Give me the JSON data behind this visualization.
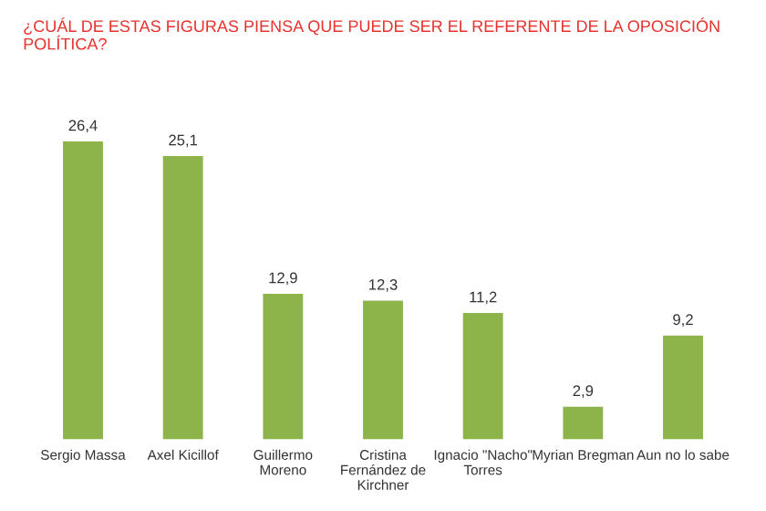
{
  "chart_data": {
    "type": "bar",
    "title": "¿CUÁL DE ESTAS FIGURAS PIENSA QUE PUEDE SER EL REFERENTE DE LA OPOSICIÓN\nPOLÍTICA?",
    "categories": [
      "Sergio Massa",
      "Axel Kicillof",
      "Guillermo\nMoreno",
      "Cristina\nFernández de\nKirchner",
      "Ignacio \"Nacho\"\nTorres",
      "Myrian Bregman",
      "Aun no lo sabe"
    ],
    "values": [
      26.4,
      25.1,
      12.9,
      12.3,
      11.2,
      2.9,
      9.2
    ],
    "value_labels": [
      "26,4",
      "25,1",
      "12,9",
      "12,3",
      "11,2",
      "2,9",
      "9,2"
    ],
    "color": "#8db34b",
    "grid": false,
    "legend": false
  }
}
